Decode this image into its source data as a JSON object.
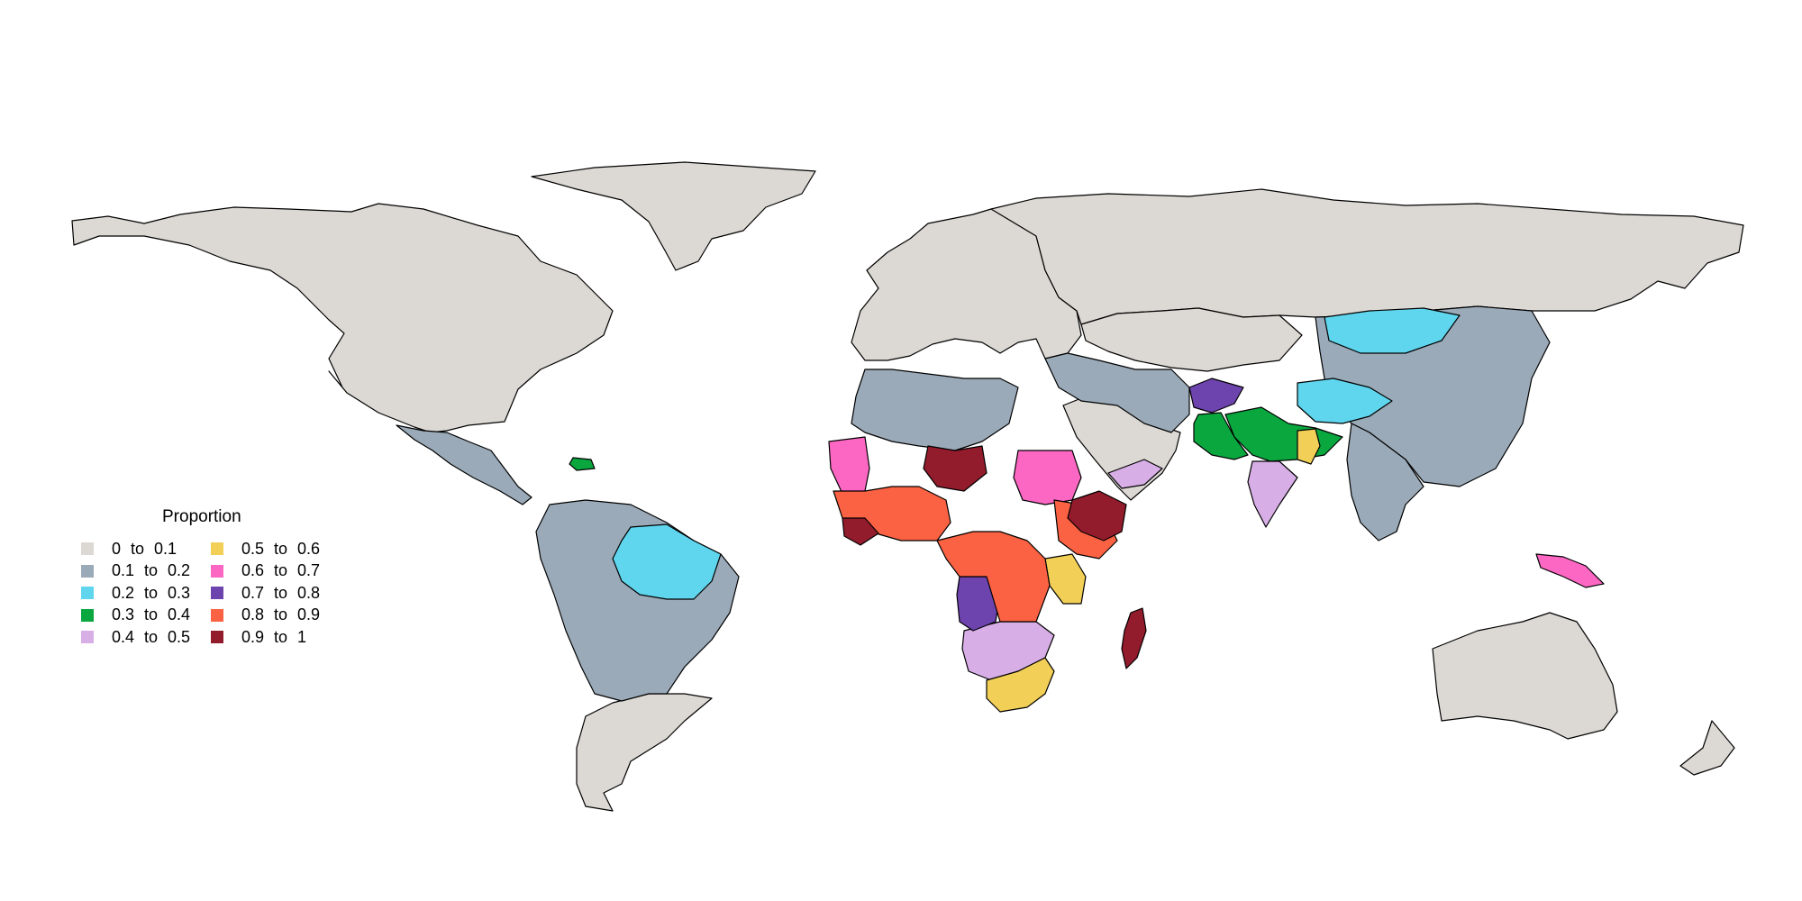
{
  "legend": {
    "title": "Proportion",
    "items": [
      {
        "label": "0  to  0.1",
        "color": "#dcd8d3"
      },
      {
        "label": "0.1  to  0.2",
        "color": "#9aaab8"
      },
      {
        "label": "0.2  to  0.3",
        "color": "#5fd6ee"
      },
      {
        "label": "0.3  to  0.4",
        "color": "#0aa63e"
      },
      {
        "label": "0.4  to  0.5",
        "color": "#d7aee6"
      },
      {
        "label": "0.5  to  0.6",
        "color": "#f2d057"
      },
      {
        "label": "0.6  to  0.7",
        "color": "#fb67c3"
      },
      {
        "label": "0.7  to  0.8",
        "color": "#6d43ae"
      },
      {
        "label": "0.8  to  0.9",
        "color": "#fb6243"
      },
      {
        "label": "0.9  to  1",
        "color": "#921b2c"
      }
    ]
  },
  "map_data": {
    "type": "choropleth",
    "projection": "world",
    "border_color": "#000000",
    "regions": [
      {
        "name": "North America",
        "class": 0
      },
      {
        "name": "Greenland",
        "class": 0
      },
      {
        "name": "Europe",
        "class": 0
      },
      {
        "name": "Russia",
        "class": 0
      },
      {
        "name": "Central Asia",
        "class": 0
      },
      {
        "name": "Arabian Peninsula",
        "class": 0
      },
      {
        "name": "China",
        "class": 1
      },
      {
        "name": "Southern Cone",
        "class": 0
      },
      {
        "name": "Australia",
        "class": 0
      },
      {
        "name": "New Zealand",
        "class": 0
      },
      {
        "name": "Central America",
        "class": 1
      },
      {
        "name": "Andean and Brazil region",
        "class": 1
      },
      {
        "name": "North Africa",
        "class": 1
      },
      {
        "name": "Iran and Caucasus",
        "class": 1
      },
      {
        "name": "Southeast Asia mainland",
        "class": 1
      },
      {
        "name": "Amazon region",
        "class": 2
      },
      {
        "name": "Mongolia",
        "class": 2
      },
      {
        "name": "Tibet and Himalaya",
        "class": 2
      },
      {
        "name": "Northern India",
        "class": 3
      },
      {
        "name": "Pakistan",
        "class": 3
      },
      {
        "name": "Hispaniola",
        "class": 3
      },
      {
        "name": "Yemen coast",
        "class": 4
      },
      {
        "name": "Central India",
        "class": 4
      },
      {
        "name": "Southern Africa interior",
        "class": 4
      },
      {
        "name": "Eastern India",
        "class": 5
      },
      {
        "name": "Mozambique coast",
        "class": 5
      },
      {
        "name": "South Africa",
        "class": 5
      },
      {
        "name": "Mauritania",
        "class": 6
      },
      {
        "name": "Sudan",
        "class": 6
      },
      {
        "name": "Papua New Guinea",
        "class": 6
      },
      {
        "name": "Afghanistan",
        "class": 7
      },
      {
        "name": "Angola",
        "class": 7
      },
      {
        "name": "West Africa",
        "class": 8
      },
      {
        "name": "Central Africa",
        "class": 8
      },
      {
        "name": "East Africa",
        "class": 8
      },
      {
        "name": "Niger",
        "class": 9
      },
      {
        "name": "Ethiopia",
        "class": 9
      },
      {
        "name": "Madagascar",
        "class": 9
      },
      {
        "name": "Guinea coast",
        "class": 9
      }
    ]
  }
}
